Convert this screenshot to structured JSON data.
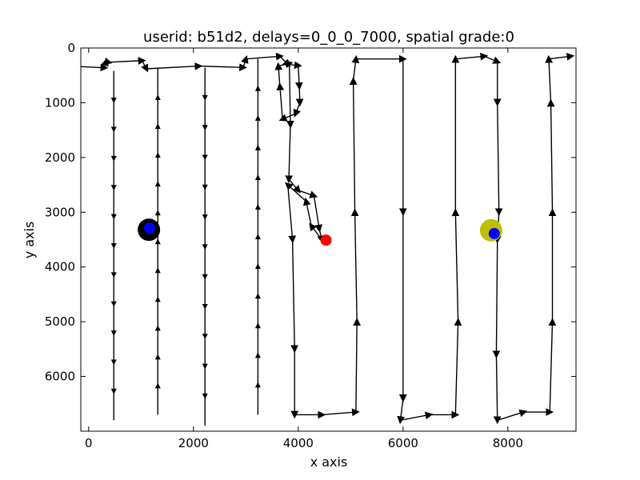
{
  "chart_data": {
    "type": "scatter",
    "title": "userid: b51d2, delays=0_0_0_7000, spatial grade:0",
    "xlabel": "x axis",
    "ylabel": "y axis",
    "xlim": [
      -150,
      9300
    ],
    "ylim": [
      7000,
      0
    ],
    "y_inverted": true,
    "grid": false,
    "x_ticks": [
      0,
      2000,
      4000,
      6000,
      8000
    ],
    "y_ticks": [
      0,
      1000,
      2000,
      3000,
      4000,
      5000,
      6000
    ],
    "x_tick_labels": [
      "0",
      "2000",
      "4000",
      "6000",
      "8000"
    ],
    "y_tick_labels": [
      "0",
      "1000",
      "2000",
      "3000",
      "4000",
      "5000",
      "6000"
    ],
    "path_color": "#000000",
    "path": [
      [
        -150,
        340
      ],
      [
        300,
        360
      ],
      [
        330,
        250
      ],
      [
        380,
        260
      ],
      [
        1020,
        230
      ],
      [
        1100,
        380
      ],
      [
        2100,
        330
      ],
      [
        2950,
        355
      ],
      [
        3000,
        200
      ],
      [
        3650,
        150
      ],
      [
        3800,
        300
      ],
      [
        4000,
        320
      ],
      [
        4020,
        700
      ],
      [
        4030,
        1000
      ],
      [
        3950,
        1200
      ],
      [
        3700,
        1300
      ],
      [
        3650,
        700
      ],
      [
        3620,
        330
      ],
      [
        3830,
        280
      ],
      [
        3850,
        1400
      ],
      [
        3820,
        2400
      ],
      [
        4000,
        2600
      ],
      [
        4300,
        2700
      ],
      [
        4400,
        3300
      ],
      [
        4450,
        3500
      ],
      [
        4250,
        3250
      ],
      [
        4150,
        2800
      ],
      [
        3800,
        2500
      ],
      [
        3890,
        3500
      ],
      [
        3930,
        5500
      ],
      [
        3930,
        6700
      ],
      [
        4450,
        6700
      ],
      [
        5100,
        6650
      ],
      [
        5120,
        5000
      ],
      [
        5080,
        3000
      ],
      [
        5050,
        600
      ],
      [
        5100,
        200
      ],
      [
        6000,
        200
      ],
      [
        6000,
        3000
      ],
      [
        6000,
        6400
      ],
      [
        5950,
        6800
      ],
      [
        6500,
        6700
      ],
      [
        7000,
        6700
      ],
      [
        7050,
        5000
      ],
      [
        7000,
        3000
      ],
      [
        7000,
        200
      ],
      [
        7550,
        150
      ],
      [
        7800,
        250
      ],
      [
        7800,
        1000
      ],
      [
        7830,
        3000
      ],
      [
        7800,
        3500
      ],
      [
        7780,
        5600
      ],
      [
        7800,
        6800
      ],
      [
        8300,
        6650
      ],
      [
        8800,
        6650
      ],
      [
        8850,
        5000
      ],
      [
        8850,
        3000
      ],
      [
        8820,
        1000
      ],
      [
        8780,
        200
      ],
      [
        9200,
        150
      ]
    ],
    "columns": [
      {
        "x": 480,
        "y_top": 420,
        "y_bottom": 6800,
        "dir": "down"
      },
      {
        "x": 1320,
        "y_top": 380,
        "y_bottom": 6700,
        "dir": "up"
      },
      {
        "x": 2220,
        "y_top": 360,
        "y_bottom": 6900,
        "dir": "down"
      },
      {
        "x": 3230,
        "y_top": 200,
        "y_bottom": 6700,
        "dir": "up"
      }
    ],
    "points": [
      {
        "name": "black-target",
        "x": 1150,
        "y": 3320,
        "color": "#000000",
        "size": 14
      },
      {
        "name": "blue-gaze-1",
        "x": 1160,
        "y": 3290,
        "color": "#0000ff",
        "size": 7
      },
      {
        "name": "red-start",
        "x": 4530,
        "y": 3510,
        "color": "#ff0000",
        "size": 7
      },
      {
        "name": "olive-target",
        "x": 7680,
        "y": 3330,
        "color": "#bfbf00",
        "size": 14
      },
      {
        "name": "blue-gaze-2",
        "x": 7740,
        "y": 3390,
        "color": "#0000ff",
        "size": 7
      }
    ]
  }
}
